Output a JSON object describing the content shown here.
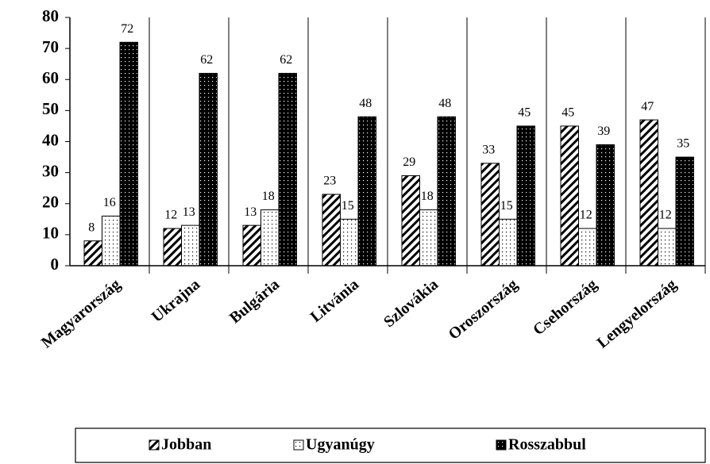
{
  "chart_data": {
    "type": "bar",
    "categories": [
      "Magyarország",
      "Ukrajna",
      "Bulgária",
      "Litvánia",
      "Szlovákia",
      "Oroszország",
      "Csehország",
      "Lengyelország"
    ],
    "series": [
      {
        "name": "Jobban",
        "color": "#000000",
        "pattern": "hatch",
        "values": [
          8,
          12,
          13,
          23,
          29,
          33,
          45,
          47
        ]
      },
      {
        "name": "Ugyanúgy",
        "color": "#000000",
        "pattern": "dots-light",
        "values": [
          16,
          13,
          18,
          15,
          18,
          15,
          12,
          12
        ]
      },
      {
        "name": "Rosszabbul",
        "color": "#000000",
        "pattern": "dots-dark",
        "values": [
          72,
          62,
          62,
          48,
          48,
          45,
          39,
          35
        ]
      }
    ],
    "ylim": [
      0,
      80
    ],
    "yticks": [
      0,
      10,
      20,
      30,
      40,
      50,
      60,
      70,
      80
    ],
    "legend": "bottom"
  }
}
